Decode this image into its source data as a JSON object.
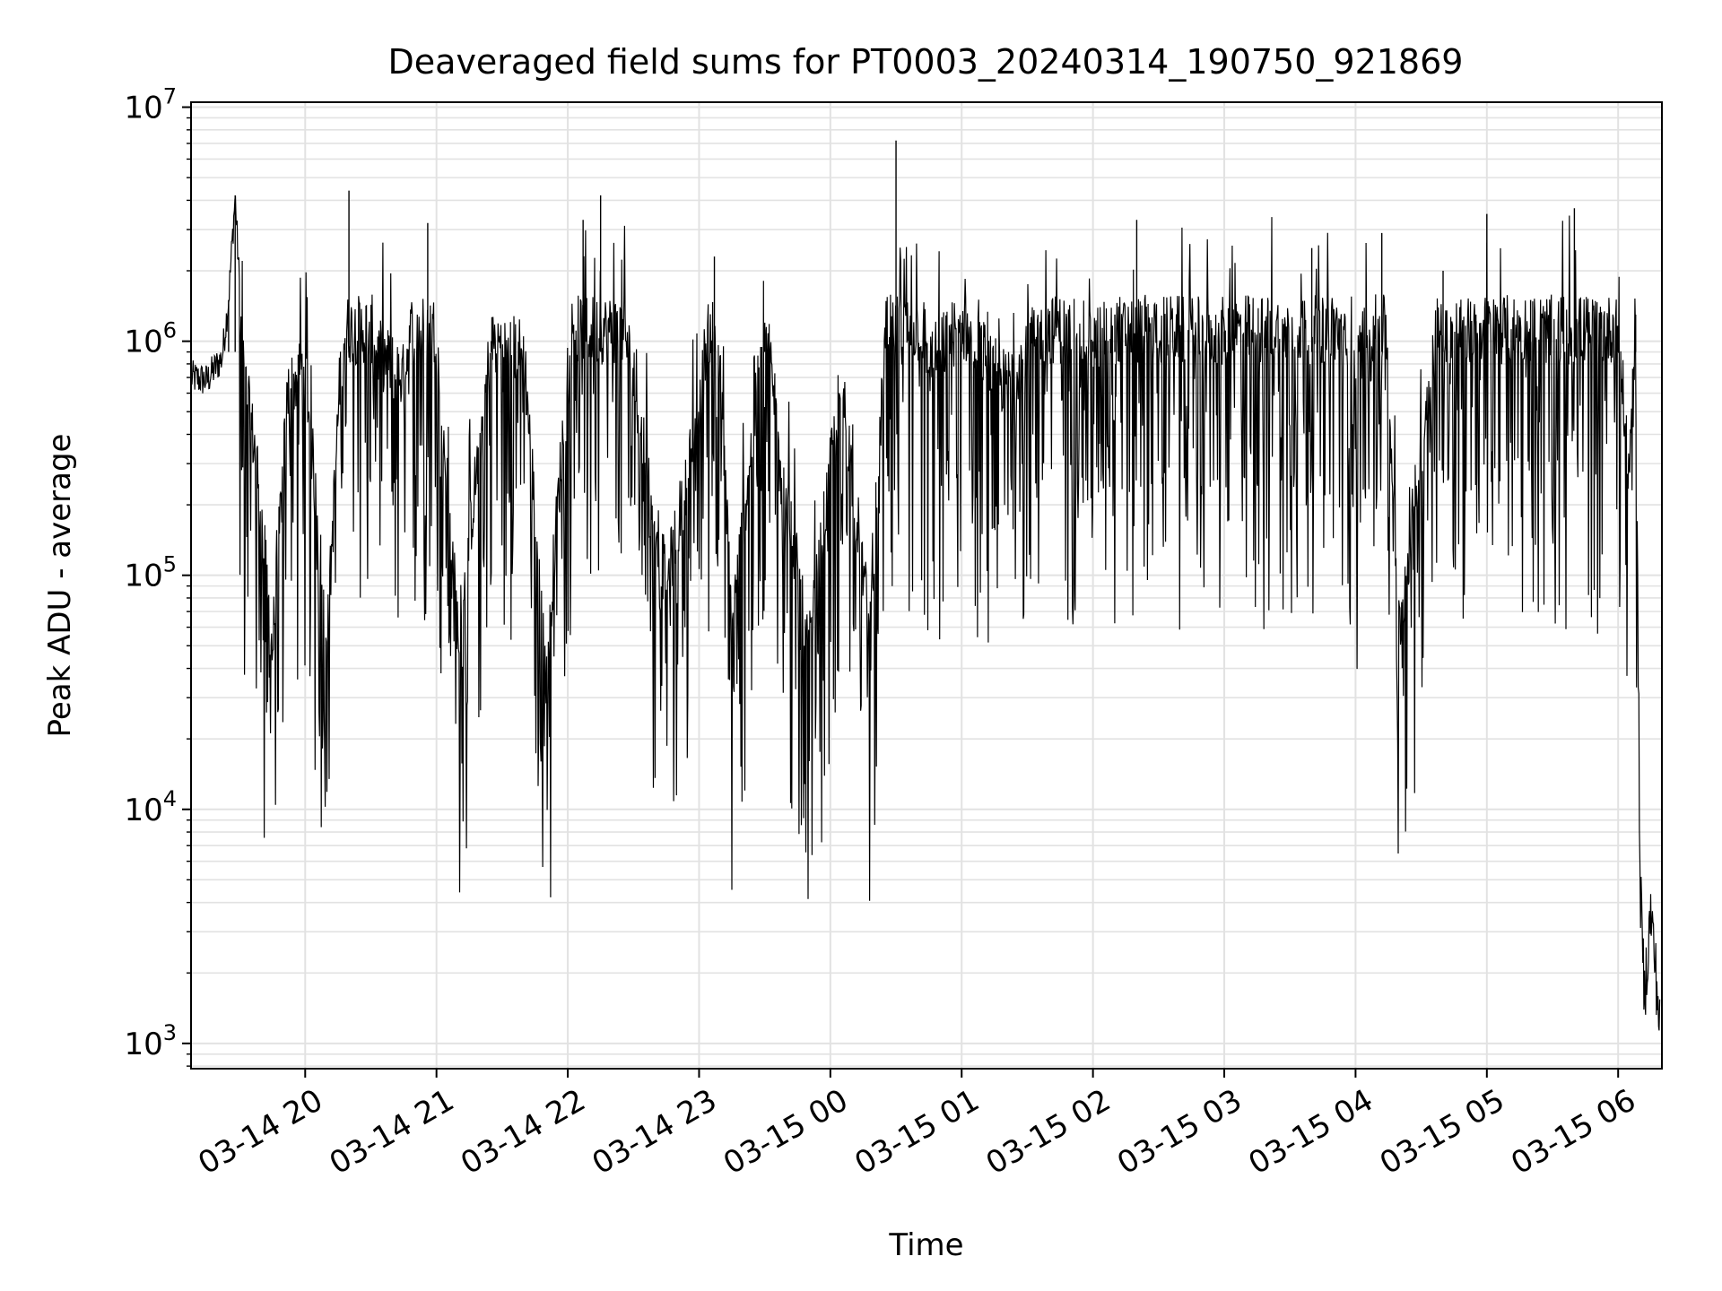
{
  "chart_data": {
    "type": "line",
    "title": "Deaveraged field sums for PT0003_20240314_190750_921869",
    "xlabel": "Time",
    "ylabel": "Peak ADU - average",
    "y_scale": "log",
    "ylim": [
      780,
      10500000
    ],
    "xlim": [
      "2024-03-14 19:07:50",
      "2024-03-15 06:20:00"
    ],
    "x_ticks": [
      {
        "t": "2024-03-14 20:00",
        "label": "03-14 20"
      },
      {
        "t": "2024-03-14 21:00",
        "label": "03-14 21"
      },
      {
        "t": "2024-03-14 22:00",
        "label": "03-14 22"
      },
      {
        "t": "2024-03-14 23:00",
        "label": "03-14 23"
      },
      {
        "t": "2024-03-15 00:00",
        "label": "03-15 00"
      },
      {
        "t": "2024-03-15 01:00",
        "label": "03-15 01"
      },
      {
        "t": "2024-03-15 02:00",
        "label": "03-15 02"
      },
      {
        "t": "2024-03-15 03:00",
        "label": "03-15 03"
      },
      {
        "t": "2024-03-15 04:00",
        "label": "03-15 04"
      },
      {
        "t": "2024-03-15 05:00",
        "label": "03-15 05"
      },
      {
        "t": "2024-03-15 06:00",
        "label": "03-15 06"
      }
    ],
    "y_ticks": [
      {
        "value": 1000,
        "base": "10",
        "exp": "3"
      },
      {
        "value": 10000,
        "base": "10",
        "exp": "4"
      },
      {
        "value": 100000,
        "base": "10",
        "exp": "5"
      },
      {
        "value": 1000000,
        "base": "10",
        "exp": "6"
      },
      {
        "value": 10000000,
        "base": "10",
        "exp": "7"
      }
    ],
    "grid": true,
    "line_color": "#000000",
    "series": [
      {
        "x": [
          "2024-03-14 19:08",
          "2024-03-14 19:15",
          "2024-03-14 19:22",
          "2024-03-14 19:25",
          "2024-03-14 19:28",
          "2024-03-14 19:32",
          "2024-03-14 19:38",
          "2024-03-14 19:45",
          "2024-03-14 19:52",
          "2024-03-14 20:00",
          "2024-03-14 20:10",
          "2024-03-14 20:20",
          "2024-03-14 20:33",
          "2024-03-14 20:45",
          "2024-03-14 20:56",
          "2024-03-14 21:10",
          "2024-03-14 21:25",
          "2024-03-14 21:40",
          "2024-03-14 21:50",
          "2024-03-14 22:00",
          "2024-03-14 22:07",
          "2024-03-14 22:15",
          "2024-03-14 22:30",
          "2024-03-14 22:45",
          "2024-03-14 23:00",
          "2024-03-14 23:07",
          "2024-03-14 23:15",
          "2024-03-14 23:30",
          "2024-03-14 23:50",
          "2024-03-15 00:05",
          "2024-03-15 00:18",
          "2024-03-15 00:30",
          "2024-03-15 00:45",
          "2024-03-15 01:00",
          "2024-03-15 01:20",
          "2024-03-15 01:40",
          "2024-03-15 02:00",
          "2024-03-15 02:10",
          "2024-03-15 02:20",
          "2024-03-15 02:40",
          "2024-03-15 03:00",
          "2024-03-15 03:20",
          "2024-03-15 03:40",
          "2024-03-15 04:00",
          "2024-03-15 04:12",
          "2024-03-15 04:20",
          "2024-03-15 04:40",
          "2024-03-15 04:55",
          "2024-03-15 05:00",
          "2024-03-15 05:20",
          "2024-03-15 05:40",
          "2024-03-15 05:50",
          "2024-03-15 06:00",
          "2024-03-15 06:05",
          "2024-03-15 06:08",
          "2024-03-15 06:10",
          "2024-03-15 06:12",
          "2024-03-15 06:15",
          "2024-03-15 06:19"
        ],
        "y": [
          700000,
          680000,
          850000,
          1500000,
          4200000,
          700000,
          300000,
          47000,
          600000,
          800000,
          50000,
          4400000,
          900000,
          700000,
          3200000,
          55000,
          1000000,
          900000,
          38000,
          800000,
          3300000,
          4200000,
          700000,
          90000,
          500000,
          2300000,
          60000,
          1200000,
          45000,
          700000,
          58000,
          7200000,
          800000,
          1200000,
          650000,
          1300000,
          1000000,
          1300000,
          3300000,
          1100000,
          1100000,
          1500000,
          2500000,
          700000,
          2900000,
          59000,
          2000000,
          1300000,
          3500000,
          1500000,
          3700000,
          1200000,
          1100000,
          270000,
          1300000,
          4800,
          1600,
          3700,
          1200
        ]
      }
    ]
  }
}
